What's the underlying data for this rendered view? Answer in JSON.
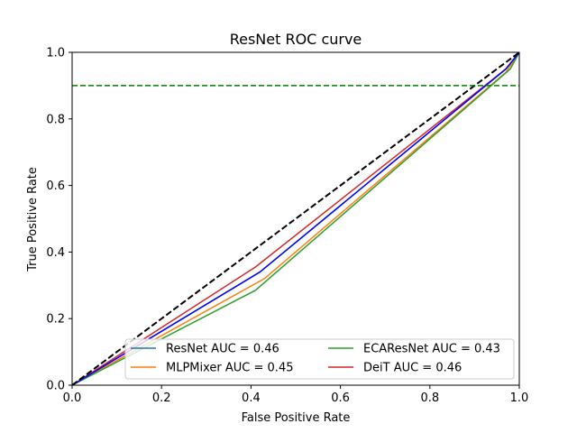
{
  "chart_data": {
    "type": "line",
    "title": "ResNet ROC curve",
    "xlabel": "False Positive Rate",
    "ylabel": "True Positive Rate",
    "xlim": [
      0,
      1
    ],
    "ylim": [
      0,
      1
    ],
    "xticks": [
      "0.0",
      "0.2",
      "0.4",
      "0.6",
      "0.8",
      "1.0"
    ],
    "yticks": [
      "0.0",
      "0.2",
      "0.4",
      "0.6",
      "0.8",
      "1.0"
    ],
    "grid": false,
    "legend_position": "lower-right",
    "series": [
      {
        "name": "ResNet AUC = 0.46",
        "color": "#1f77b4",
        "x": [
          0,
          0.42,
          0.97,
          1.0
        ],
        "y": [
          0,
          0.34,
          0.95,
          1.0
        ]
      },
      {
        "name": "MLPMixer AUC = 0.45",
        "color": "#ff7f0e",
        "x": [
          0,
          0.43,
          0.97,
          1.0
        ],
        "y": [
          0,
          0.32,
          0.94,
          1.0
        ]
      },
      {
        "name": "ECAResNet AUC = 0.43",
        "color": "#2ca02c",
        "x": [
          0,
          0.41,
          0.98,
          1.0
        ],
        "y": [
          0,
          0.285,
          0.95,
          1.0
        ]
      },
      {
        "name": "DeiT AUC = 0.46",
        "color": "#d62728",
        "x": [
          0,
          0.41,
          0.97,
          1.0
        ],
        "y": [
          0,
          0.355,
          0.95,
          1.0
        ]
      }
    ],
    "overlay_line": {
      "color": "#0000ff",
      "x": [
        0,
        0.42,
        0.97,
        1.0
      ],
      "y": [
        0,
        0.34,
        0.95,
        1.0
      ]
    },
    "reference_lines": [
      {
        "type": "diagonal",
        "color": "#000000",
        "style": "dashed",
        "x": [
          0,
          1
        ],
        "y": [
          0,
          1
        ]
      },
      {
        "type": "horizontal",
        "color": "#008000",
        "style": "dashed",
        "y": 0.9
      }
    ]
  }
}
